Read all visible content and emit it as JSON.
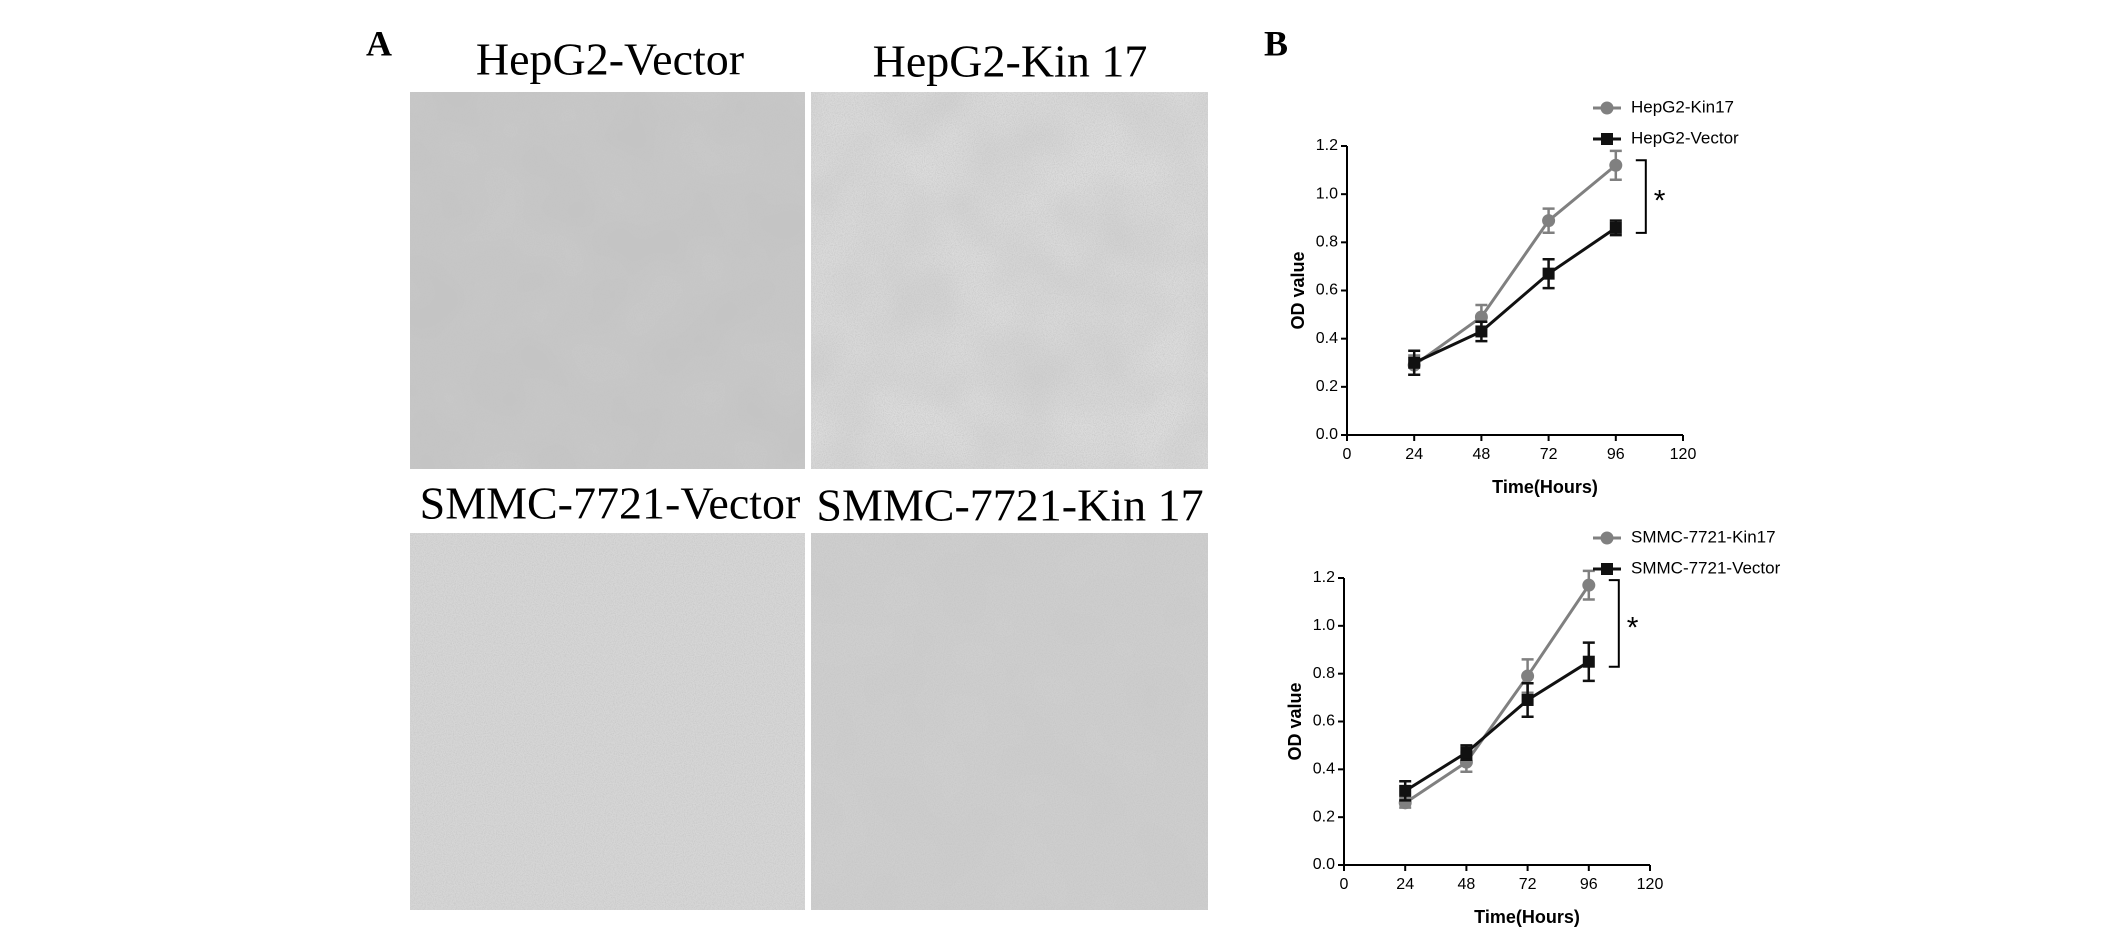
{
  "panels": {
    "a": "A",
    "b": "B"
  },
  "images": [
    {
      "title": "HepG2-Vector"
    },
    {
      "title": "HepG2-Kin 17"
    },
    {
      "title": "SMMC-7721-Vector"
    },
    {
      "title": "SMMC-7721-Kin 17"
    }
  ],
  "chart_data": [
    {
      "type": "line",
      "x_label": "Time(Hours)",
      "y_label": "OD value",
      "annotation": "*",
      "x": [
        24,
        48,
        72,
        96
      ],
      "xlim": [
        0,
        120
      ],
      "xticks": [
        0,
        24,
        48,
        72,
        96,
        120
      ],
      "ylim": [
        0,
        1.2
      ],
      "yticks": [
        {
          "value": 0,
          "label": "0.0"
        },
        0.2,
        0.4,
        0.6,
        0.8,
        {
          "value": 1,
          "label": "1.0"
        },
        1.2
      ],
      "series": [
        {
          "name": "HepG2-Kin17",
          "color": "#808080",
          "marker": "circle",
          "values": [
            0.29,
            0.49,
            0.89,
            1.12
          ],
          "errors": [
            0.04,
            0.05,
            0.05,
            0.06
          ]
        },
        {
          "name": "HepG2-Vector",
          "color": "#111111",
          "marker": "square",
          "values": [
            0.3,
            0.43,
            0.67,
            0.86
          ],
          "errors": [
            0.05,
            0.04,
            0.06,
            0.03
          ]
        }
      ]
    },
    {
      "type": "line",
      "x_label": "Time(Hours)",
      "y_label": "OD value",
      "annotation": "*",
      "x": [
        24,
        48,
        72,
        96
      ],
      "xlim": [
        0,
        120
      ],
      "xticks": [
        0,
        24,
        48,
        72,
        96,
        120
      ],
      "ylim": [
        0,
        1.2
      ],
      "yticks": [
        {
          "value": 0,
          "label": "0.0"
        },
        0.2,
        0.4,
        0.6,
        0.8,
        {
          "value": 1,
          "label": "1.0"
        },
        1.2
      ],
      "series": [
        {
          "name": "SMMC-7721-Kin17",
          "color": "#808080",
          "marker": "circle",
          "values": [
            0.26,
            0.43,
            0.79,
            1.17
          ],
          "errors": [
            0.02,
            0.04,
            0.07,
            0.06
          ]
        },
        {
          "name": "SMMC-7721-Vector",
          "color": "#111111",
          "marker": "square",
          "values": [
            0.31,
            0.47,
            0.69,
            0.85
          ],
          "errors": [
            0.04,
            0.03,
            0.07,
            0.08
          ]
        }
      ]
    }
  ]
}
